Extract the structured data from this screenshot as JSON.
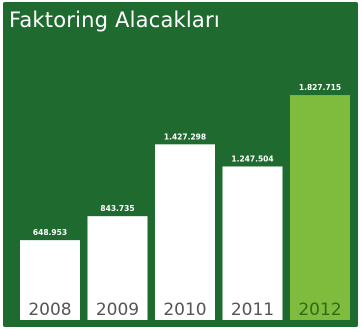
{
  "chart_data": {
    "type": "bar",
    "title": "Faktoring Alacakları",
    "categories": [
      "2008",
      "2009",
      "2010",
      "2011",
      "2012"
    ],
    "values": [
      648953,
      843735,
      1427298,
      1247504,
      1827715
    ],
    "value_labels": [
      "648.953",
      "843.735",
      "1.427.298",
      "1.247.504",
      "1.827.715"
    ],
    "highlighted_category": "2012",
    "ylim": [
      0,
      1950000
    ],
    "grid": false,
    "legend": "none",
    "xlabel": "",
    "ylabel": ""
  },
  "colors": {
    "background": "#1f6b2f",
    "bar": "#ffffff",
    "bar_highlight": "#7fbb3c",
    "title_text": "#ffffff",
    "label_text": "#ffffff",
    "year_text": "#555555",
    "year_text_highlight": "#2f6a1a"
  }
}
